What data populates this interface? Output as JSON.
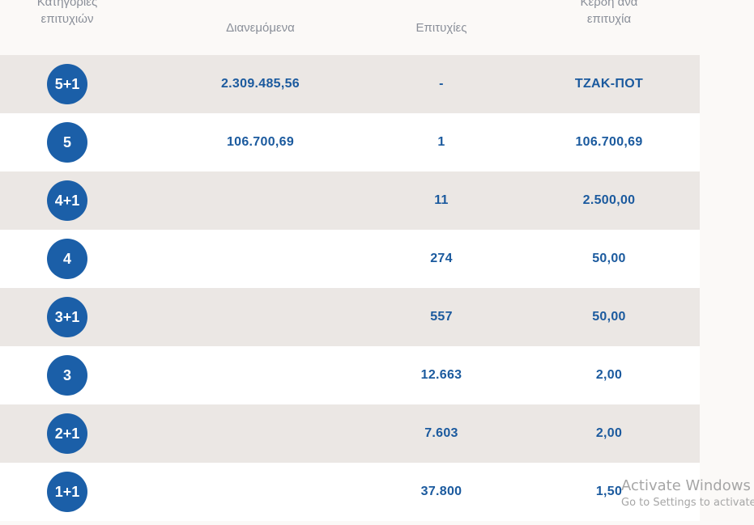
{
  "header": {
    "category": "Κατηγορίες\nεπιτυχιών",
    "distributed": "Διανεμόμενα",
    "winners": "Επιτυχίες",
    "prize_per_winner": "Κέρδη ανά\nεπιτυχία"
  },
  "rows": [
    {
      "category": "5+1",
      "distributed": "2.309.485,56",
      "winners": "-",
      "prize": "ΤΖΑΚ-ΠΟΤ"
    },
    {
      "category": "5",
      "distributed": "106.700,69",
      "winners": "1",
      "prize": "106.700,69"
    },
    {
      "category": "4+1",
      "distributed": "",
      "winners": "11",
      "prize": "2.500,00"
    },
    {
      "category": "4",
      "distributed": "",
      "winners": "274",
      "prize": "50,00"
    },
    {
      "category": "3+1",
      "distributed": "",
      "winners": "557",
      "prize": "50,00"
    },
    {
      "category": "3",
      "distributed": "",
      "winners": "12.663",
      "prize": "2,00"
    },
    {
      "category": "2+1",
      "distributed": "",
      "winners": "7.603",
      "prize": "2,00"
    },
    {
      "category": "1+1",
      "distributed": "",
      "winners": "37.800",
      "prize": "1,50"
    }
  ],
  "watermark": {
    "title": "Activate Windows",
    "subtitle": "Go to Settings to activate"
  },
  "colors": {
    "accent": "#1b5fa8",
    "text_blue": "#1b5a9e",
    "header_gray": "#8a8f99",
    "row_shaded": "#ebe7e4",
    "row_plain": "#ffffff"
  }
}
